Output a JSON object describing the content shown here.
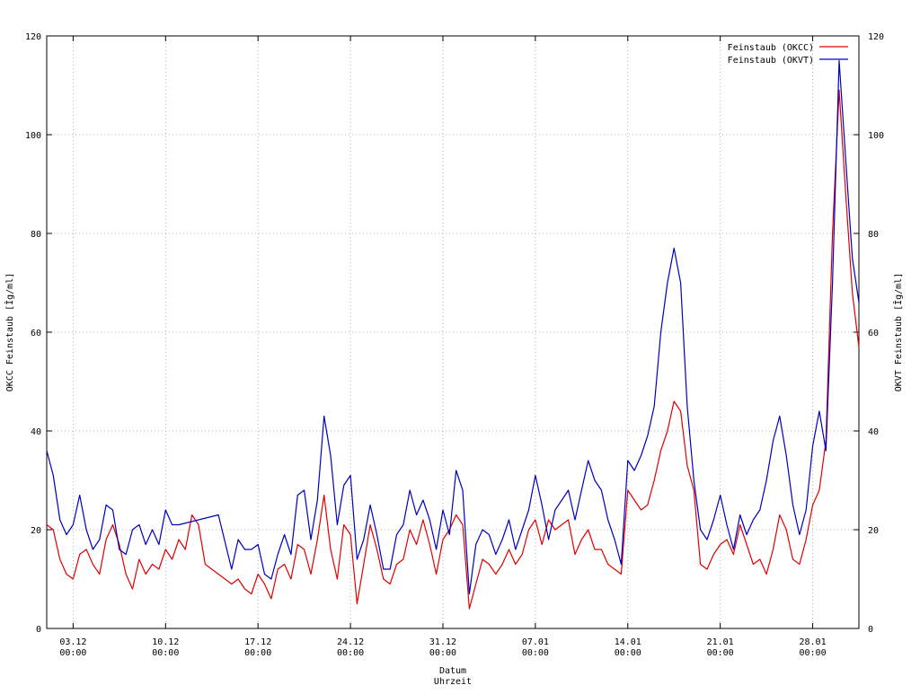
{
  "chart_data": {
    "type": "line",
    "title": "",
    "xlabel": [
      "Datum",
      "Uhrzeit"
    ],
    "ylabel_left": "OKCC Feinstaub [Îg/ml]",
    "ylabel_right": "OKVT Feinstaub [Îg/ml]",
    "ylim": [
      0,
      120
    ],
    "xlim": [
      "2012-12-01T00:00",
      "2013-01-31T12:00"
    ],
    "yticks": [
      0,
      20,
      40,
      60,
      80,
      100,
      120
    ],
    "xticks": [
      {
        "date": "2012-12-03T00:00",
        "label": "03.12",
        "time": "00:00"
      },
      {
        "date": "2012-12-10T00:00",
        "label": "10.12",
        "time": "00:00"
      },
      {
        "date": "2012-12-17T00:00",
        "label": "17.12",
        "time": "00:00"
      },
      {
        "date": "2012-12-24T00:00",
        "label": "24.12",
        "time": "00:00"
      },
      {
        "date": "2012-12-31T00:00",
        "label": "31.12",
        "time": "00:00"
      },
      {
        "date": "2013-01-07T00:00",
        "label": "07.01",
        "time": "00:00"
      },
      {
        "date": "2013-01-14T00:00",
        "label": "14.01",
        "time": "00:00"
      },
      {
        "date": "2013-01-21T00:00",
        "label": "21.01",
        "time": "00:00"
      },
      {
        "date": "2013-01-28T00:00",
        "label": "28.01",
        "time": "00:00"
      }
    ],
    "grid": true,
    "legend_position": "top-right",
    "series": [
      {
        "name": "Feinstaub (OKCC)",
        "color": "#e00000",
        "points": [
          [
            "2012-12-01T00:00",
            21
          ],
          [
            "2012-12-01T12:00",
            20
          ],
          [
            "2012-12-02T00:00",
            14
          ],
          [
            "2012-12-02T12:00",
            11
          ],
          [
            "2012-12-03T00:00",
            10
          ],
          [
            "2012-12-03T12:00",
            15
          ],
          [
            "2012-12-04T00:00",
            16
          ],
          [
            "2012-12-04T12:00",
            13
          ],
          [
            "2012-12-05T00:00",
            11
          ],
          [
            "2012-12-05T12:00",
            18
          ],
          [
            "2012-12-06T00:00",
            21
          ],
          [
            "2012-12-06T12:00",
            17
          ],
          [
            "2012-12-07T00:00",
            11
          ],
          [
            "2012-12-07T12:00",
            8
          ],
          [
            "2012-12-08T00:00",
            14
          ],
          [
            "2012-12-08T12:00",
            11
          ],
          [
            "2012-12-09T00:00",
            13
          ],
          [
            "2012-12-09T12:00",
            12
          ],
          [
            "2012-12-10T00:00",
            16
          ],
          [
            "2012-12-10T12:00",
            14
          ],
          [
            "2012-12-11T00:00",
            18
          ],
          [
            "2012-12-11T12:00",
            16
          ],
          [
            "2012-12-12T00:00",
            23
          ],
          [
            "2012-12-12T12:00",
            21
          ],
          [
            "2012-12-13T00:00",
            13
          ],
          [
            "2012-12-14T00:00",
            11
          ],
          [
            "2012-12-15T00:00",
            9
          ],
          [
            "2012-12-15T12:00",
            10
          ],
          [
            "2012-12-16T00:00",
            8
          ],
          [
            "2012-12-16T12:00",
            7
          ],
          [
            "2012-12-17T00:00",
            11
          ],
          [
            "2012-12-17T12:00",
            9
          ],
          [
            "2012-12-18T00:00",
            6
          ],
          [
            "2012-12-18T12:00",
            12
          ],
          [
            "2012-12-19T00:00",
            13
          ],
          [
            "2012-12-19T12:00",
            10
          ],
          [
            "2012-12-20T00:00",
            17
          ],
          [
            "2012-12-20T12:00",
            16
          ],
          [
            "2012-12-21T00:00",
            11
          ],
          [
            "2012-12-21T12:00",
            18
          ],
          [
            "2012-12-22T00:00",
            27
          ],
          [
            "2012-12-22T12:00",
            16
          ],
          [
            "2012-12-23T00:00",
            10
          ],
          [
            "2012-12-23T12:00",
            21
          ],
          [
            "2012-12-24T00:00",
            19
          ],
          [
            "2012-12-24T12:00",
            5
          ],
          [
            "2012-12-25T00:00",
            13
          ],
          [
            "2012-12-25T12:00",
            21
          ],
          [
            "2012-12-26T00:00",
            16
          ],
          [
            "2012-12-26T12:00",
            10
          ],
          [
            "2012-12-27T00:00",
            9
          ],
          [
            "2012-12-27T12:00",
            13
          ],
          [
            "2012-12-28T00:00",
            14
          ],
          [
            "2012-12-28T12:00",
            20
          ],
          [
            "2012-12-29T00:00",
            17
          ],
          [
            "2012-12-29T12:00",
            22
          ],
          [
            "2012-12-30T00:00",
            17
          ],
          [
            "2012-12-30T12:00",
            11
          ],
          [
            "2012-12-31T00:00",
            18
          ],
          [
            "2012-12-31T12:00",
            20
          ],
          [
            "2013-01-01T00:00",
            23
          ],
          [
            "2013-01-01T12:00",
            21
          ],
          [
            "2013-01-02T00:00",
            4
          ],
          [
            "2013-01-02T12:00",
            9
          ],
          [
            "2013-01-03T00:00",
            14
          ],
          [
            "2013-01-03T12:00",
            13
          ],
          [
            "2013-01-04T00:00",
            11
          ],
          [
            "2013-01-04T12:00",
            13
          ],
          [
            "2013-01-05T00:00",
            16
          ],
          [
            "2013-01-05T12:00",
            13
          ],
          [
            "2013-01-06T00:00",
            15
          ],
          [
            "2013-01-06T12:00",
            20
          ],
          [
            "2013-01-07T00:00",
            22
          ],
          [
            "2013-01-07T12:00",
            17
          ],
          [
            "2013-01-08T00:00",
            22
          ],
          [
            "2013-01-08T12:00",
            20
          ],
          [
            "2013-01-09T00:00",
            21
          ],
          [
            "2013-01-09T12:00",
            22
          ],
          [
            "2013-01-10T00:00",
            15
          ],
          [
            "2013-01-10T12:00",
            18
          ],
          [
            "2013-01-11T00:00",
            20
          ],
          [
            "2013-01-11T12:00",
            16
          ],
          [
            "2013-01-12T00:00",
            16
          ],
          [
            "2013-01-12T12:00",
            13
          ],
          [
            "2013-01-13T00:00",
            12
          ],
          [
            "2013-01-13T12:00",
            11
          ],
          [
            "2013-01-14T00:00",
            28
          ],
          [
            "2013-01-14T12:00",
            26
          ],
          [
            "2013-01-15T00:00",
            24
          ],
          [
            "2013-01-15T12:00",
            25
          ],
          [
            "2013-01-16T00:00",
            30
          ],
          [
            "2013-01-16T12:00",
            36
          ],
          [
            "2013-01-17T00:00",
            40
          ],
          [
            "2013-01-17T12:00",
            46
          ],
          [
            "2013-01-18T00:00",
            44
          ],
          [
            "2013-01-18T12:00",
            33
          ],
          [
            "2013-01-19T00:00",
            28
          ],
          [
            "2013-01-19T12:00",
            13
          ],
          [
            "2013-01-20T00:00",
            12
          ],
          [
            "2013-01-20T12:00",
            15
          ],
          [
            "2013-01-21T00:00",
            17
          ],
          [
            "2013-01-21T12:00",
            18
          ],
          [
            "2013-01-22T00:00",
            15
          ],
          [
            "2013-01-22T12:00",
            21
          ],
          [
            "2013-01-23T00:00",
            17
          ],
          [
            "2013-01-23T12:00",
            13
          ],
          [
            "2013-01-24T00:00",
            14
          ],
          [
            "2013-01-24T12:00",
            11
          ],
          [
            "2013-01-25T00:00",
            16
          ],
          [
            "2013-01-25T12:00",
            23
          ],
          [
            "2013-01-26T00:00",
            20
          ],
          [
            "2013-01-26T12:00",
            14
          ],
          [
            "2013-01-27T00:00",
            13
          ],
          [
            "2013-01-27T12:00",
            18
          ],
          [
            "2013-01-28T00:00",
            25
          ],
          [
            "2013-01-28T12:00",
            28
          ],
          [
            "2013-01-29T00:00",
            38
          ],
          [
            "2013-01-29T12:00",
            80
          ],
          [
            "2013-01-30T00:00",
            109
          ],
          [
            "2013-01-30T12:00",
            88
          ],
          [
            "2013-01-31T00:00",
            68
          ],
          [
            "2013-01-31T12:00",
            57
          ]
        ]
      },
      {
        "name": "Feinstaub (OKVT)",
        "color": "#0000c0",
        "points": [
          [
            "2012-12-01T00:00",
            36
          ],
          [
            "2012-12-01T12:00",
            31
          ],
          [
            "2012-12-02T00:00",
            22
          ],
          [
            "2012-12-02T12:00",
            19
          ],
          [
            "2012-12-03T00:00",
            21
          ],
          [
            "2012-12-03T12:00",
            27
          ],
          [
            "2012-12-04T00:00",
            20
          ],
          [
            "2012-12-04T12:00",
            16
          ],
          [
            "2012-12-05T00:00",
            18
          ],
          [
            "2012-12-05T12:00",
            25
          ],
          [
            "2012-12-06T00:00",
            24
          ],
          [
            "2012-12-06T12:00",
            16
          ],
          [
            "2012-12-07T00:00",
            15
          ],
          [
            "2012-12-07T12:00",
            20
          ],
          [
            "2012-12-08T00:00",
            21
          ],
          [
            "2012-12-08T12:00",
            17
          ],
          [
            "2012-12-09T00:00",
            20
          ],
          [
            "2012-12-09T12:00",
            17
          ],
          [
            "2012-12-10T00:00",
            24
          ],
          [
            "2012-12-10T12:00",
            21
          ],
          [
            "2012-12-11T00:00",
            21
          ],
          [
            "2012-12-14T00:00",
            23
          ],
          [
            "2012-12-15T00:00",
            12
          ],
          [
            "2012-12-15T12:00",
            18
          ],
          [
            "2012-12-16T00:00",
            16
          ],
          [
            "2012-12-16T12:00",
            16
          ],
          [
            "2012-12-17T00:00",
            17
          ],
          [
            "2012-12-17T12:00",
            11
          ],
          [
            "2012-12-18T00:00",
            10
          ],
          [
            "2012-12-18T12:00",
            15
          ],
          [
            "2012-12-19T00:00",
            19
          ],
          [
            "2012-12-19T12:00",
            15
          ],
          [
            "2012-12-20T00:00",
            27
          ],
          [
            "2012-12-20T12:00",
            28
          ],
          [
            "2012-12-21T00:00",
            18
          ],
          [
            "2012-12-21T12:00",
            26
          ],
          [
            "2012-12-22T00:00",
            43
          ],
          [
            "2012-12-22T12:00",
            35
          ],
          [
            "2012-12-23T00:00",
            21
          ],
          [
            "2012-12-23T12:00",
            29
          ],
          [
            "2012-12-24T00:00",
            31
          ],
          [
            "2012-12-24T12:00",
            14
          ],
          [
            "2012-12-25T00:00",
            18
          ],
          [
            "2012-12-25T12:00",
            25
          ],
          [
            "2012-12-26T00:00",
            19
          ],
          [
            "2012-12-26T12:00",
            12
          ],
          [
            "2012-12-27T00:00",
            12
          ],
          [
            "2012-12-27T12:00",
            19
          ],
          [
            "2012-12-28T00:00",
            21
          ],
          [
            "2012-12-28T12:00",
            28
          ],
          [
            "2012-12-29T00:00",
            23
          ],
          [
            "2012-12-29T12:00",
            26
          ],
          [
            "2012-12-30T00:00",
            22
          ],
          [
            "2012-12-30T12:00",
            16
          ],
          [
            "2012-12-31T00:00",
            24
          ],
          [
            "2012-12-31T12:00",
            19
          ],
          [
            "2013-01-01T00:00",
            32
          ],
          [
            "2013-01-01T12:00",
            28
          ],
          [
            "2013-01-02T00:00",
            7
          ],
          [
            "2013-01-02T12:00",
            17
          ],
          [
            "2013-01-03T00:00",
            20
          ],
          [
            "2013-01-03T12:00",
            19
          ],
          [
            "2013-01-04T00:00",
            15
          ],
          [
            "2013-01-04T12:00",
            18
          ],
          [
            "2013-01-05T00:00",
            22
          ],
          [
            "2013-01-05T12:00",
            16
          ],
          [
            "2013-01-06T00:00",
            20
          ],
          [
            "2013-01-06T12:00",
            24
          ],
          [
            "2013-01-07T00:00",
            31
          ],
          [
            "2013-01-07T12:00",
            25
          ],
          [
            "2013-01-08T00:00",
            18
          ],
          [
            "2013-01-08T12:00",
            24
          ],
          [
            "2013-01-09T00:00",
            26
          ],
          [
            "2013-01-09T12:00",
            28
          ],
          [
            "2013-01-10T00:00",
            22
          ],
          [
            "2013-01-10T12:00",
            28
          ],
          [
            "2013-01-11T00:00",
            34
          ],
          [
            "2013-01-11T12:00",
            30
          ],
          [
            "2013-01-12T00:00",
            28
          ],
          [
            "2013-01-12T12:00",
            22
          ],
          [
            "2013-01-13T00:00",
            18
          ],
          [
            "2013-01-13T12:00",
            13
          ],
          [
            "2013-01-14T00:00",
            34
          ],
          [
            "2013-01-14T12:00",
            32
          ],
          [
            "2013-01-15T00:00",
            35
          ],
          [
            "2013-01-15T12:00",
            39
          ],
          [
            "2013-01-16T00:00",
            45
          ],
          [
            "2013-01-16T12:00",
            60
          ],
          [
            "2013-01-17T00:00",
            70
          ],
          [
            "2013-01-17T12:00",
            77
          ],
          [
            "2013-01-18T00:00",
            70
          ],
          [
            "2013-01-18T12:00",
            45
          ],
          [
            "2013-01-19T00:00",
            30
          ],
          [
            "2013-01-19T12:00",
            20
          ],
          [
            "2013-01-20T00:00",
            18
          ],
          [
            "2013-01-20T12:00",
            22
          ],
          [
            "2013-01-21T00:00",
            27
          ],
          [
            "2013-01-21T12:00",
            21
          ],
          [
            "2013-01-22T00:00",
            16
          ],
          [
            "2013-01-22T12:00",
            23
          ],
          [
            "2013-01-23T00:00",
            19
          ],
          [
            "2013-01-23T12:00",
            22
          ],
          [
            "2013-01-24T00:00",
            24
          ],
          [
            "2013-01-24T12:00",
            30
          ],
          [
            "2013-01-25T00:00",
            38
          ],
          [
            "2013-01-25T12:00",
            43
          ],
          [
            "2013-01-26T00:00",
            35
          ],
          [
            "2013-01-26T12:00",
            25
          ],
          [
            "2013-01-27T00:00",
            19
          ],
          [
            "2013-01-27T12:00",
            24
          ],
          [
            "2013-01-28T00:00",
            37
          ],
          [
            "2013-01-28T12:00",
            44
          ],
          [
            "2013-01-29T00:00",
            36
          ],
          [
            "2013-01-29T12:00",
            70
          ],
          [
            "2013-01-30T00:00",
            115
          ],
          [
            "2013-01-30T12:00",
            95
          ],
          [
            "2013-01-31T00:00",
            75
          ],
          [
            "2013-01-31T12:00",
            66
          ]
        ]
      }
    ]
  }
}
